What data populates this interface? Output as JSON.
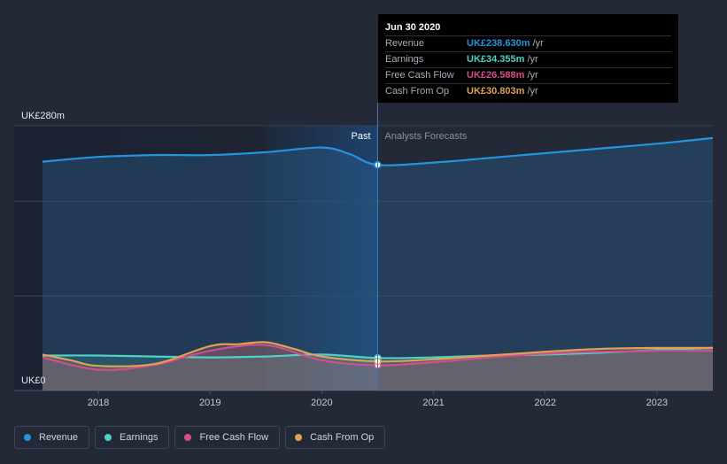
{
  "chart_data": {
    "type": "area",
    "currency": "UK£",
    "y_axis_labels": [
      "UK£280m",
      "UK£0"
    ],
    "ylim": [
      0,
      280
    ],
    "xlim": [
      2017.5,
      2023.5
    ],
    "x_ticks": [
      2018,
      2019,
      2020,
      2021,
      2022,
      2023
    ],
    "x_tick_labels": [
      "2018",
      "2019",
      "2020",
      "2021",
      "2022",
      "2023"
    ],
    "divider_x": 2020.5,
    "past_label": "Past",
    "forecast_label": "Analysts Forecasts",
    "series": [
      {
        "name": "Revenue",
        "color": "#2394df",
        "x": [
          2017.5,
          2018.0,
          2018.5,
          2019.0,
          2019.5,
          2020.0,
          2020.25,
          2020.5,
          2021.0,
          2021.5,
          2022.0,
          2022.5,
          2023.0,
          2023.5
        ],
        "values": [
          242,
          247,
          249,
          249,
          252,
          257,
          250,
          238.63,
          241,
          246,
          251,
          256,
          261,
          267
        ]
      },
      {
        "name": "Earnings",
        "color": "#4fd1c5",
        "x": [
          2017.5,
          2018.0,
          2018.5,
          2019.0,
          2019.5,
          2020.0,
          2020.5,
          2021.0,
          2021.5,
          2022.0,
          2022.5,
          2023.0,
          2023.5
        ],
        "values": [
          37,
          37,
          36,
          35,
          36,
          38,
          34.355,
          35,
          37,
          38,
          40,
          43,
          45
        ]
      },
      {
        "name": "Free Cash Flow",
        "color": "#d44d8c",
        "x": [
          2017.5,
          2018.0,
          2018.5,
          2019.0,
          2019.5,
          2020.0,
          2020.5,
          2021.0,
          2021.5,
          2022.0,
          2022.5,
          2023.0,
          2023.5
        ],
        "values": [
          35,
          22,
          27,
          42,
          48,
          32,
          26.588,
          30,
          35,
          39,
          41,
          42,
          42
        ]
      },
      {
        "name": "Cash From Op",
        "color": "#e0a057",
        "x": [
          2017.5,
          2017.75,
          2018.0,
          2018.5,
          2019.0,
          2019.25,
          2019.5,
          2019.75,
          2020.0,
          2020.5,
          2021.0,
          2021.5,
          2022.0,
          2022.5,
          2023.0,
          2023.5
        ],
        "values": [
          38,
          32,
          26,
          28,
          47,
          49,
          51,
          44,
          36,
          30.803,
          33,
          37,
          41,
          44,
          45,
          45
        ]
      }
    ]
  },
  "tooltip": {
    "date": "Jun 30 2020",
    "rows": [
      {
        "label": "Revenue",
        "value": "UK£238.630m",
        "unit": "/yr",
        "color": "#2394df"
      },
      {
        "label": "Earnings",
        "value": "UK£34.355m",
        "unit": "/yr",
        "color": "#4fd1c5"
      },
      {
        "label": "Free Cash Flow",
        "value": "UK£26.588m",
        "unit": "/yr",
        "color": "#d44d8c"
      },
      {
        "label": "Cash From Op",
        "value": "UK£30.803m",
        "unit": "/yr",
        "color": "#e0a057"
      }
    ]
  },
  "legend": [
    {
      "label": "Revenue",
      "color": "#2394df"
    },
    {
      "label": "Earnings",
      "color": "#4fd1c5"
    },
    {
      "label": "Free Cash Flow",
      "color": "#d44d8c"
    },
    {
      "label": "Cash From Op",
      "color": "#e0a057"
    }
  ]
}
